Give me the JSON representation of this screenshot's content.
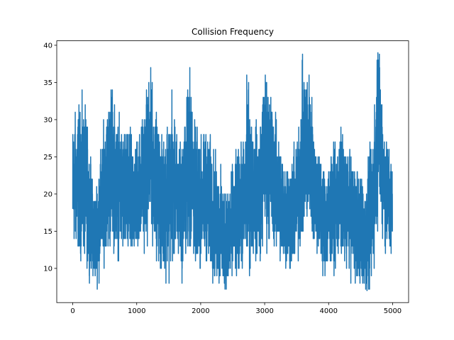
{
  "chart_data": {
    "type": "line",
    "title": "Collision Frequency",
    "xlabel": "",
    "ylabel": "",
    "xlim": [
      -250,
      5250
    ],
    "ylim": [
      5.4,
      40.6
    ],
    "xticks": [
      0,
      1000,
      2000,
      3000,
      4000,
      5000
    ],
    "yticks": [
      10,
      15,
      20,
      25,
      30,
      35,
      40
    ],
    "grid": false,
    "legend": "none",
    "n_points": 5000,
    "series_color": "#1f77b4",
    "series": [
      {
        "anchors_x": [
          0,
          100,
          200,
          300,
          350,
          400,
          500,
          600,
          700,
          800,
          900,
          1000,
          1100,
          1200,
          1300,
          1400,
          1500,
          1600,
          1700,
          1800,
          1850,
          1900,
          2000,
          2100,
          2200,
          2300,
          2400,
          2500,
          2600,
          2700,
          2750,
          2800,
          2900,
          3000,
          3100,
          3200,
          3300,
          3400,
          3500,
          3600,
          3700,
          3800,
          3900,
          4000,
          4100,
          4200,
          4300,
          4400,
          4500,
          4600,
          4700,
          4780,
          4850,
          4900,
          5000
        ],
        "anchors_mean": [
          21,
          22,
          21,
          16,
          14,
          16,
          21,
          24,
          21,
          20,
          19,
          20,
          22,
          25,
          22,
          18,
          21,
          20,
          18,
          23,
          24,
          20,
          19,
          20,
          17,
          15,
          14,
          16,
          18,
          19,
          22,
          21,
          20,
          25,
          24,
          20,
          18,
          17,
          19,
          25,
          26,
          20,
          17,
          17,
          18,
          20,
          18,
          17,
          15,
          14,
          19,
          30,
          24,
          20,
          18
        ],
        "anchors_amp": [
          4,
          4.5,
          4.5,
          3,
          3,
          3.5,
          4,
          5,
          4,
          4,
          4,
          3.5,
          4,
          5,
          4,
          4,
          5,
          4,
          4,
          5,
          5.5,
          4,
          4,
          4,
          4,
          3.5,
          3.5,
          3.5,
          3.5,
          4,
          6,
          4,
          4,
          5.5,
          4.5,
          4,
          3.5,
          3.5,
          3.5,
          5.5,
          4.5,
          3.5,
          3.5,
          3.5,
          3.5,
          4,
          3.5,
          3.5,
          3.5,
          4,
          4.5,
          5.5,
          4,
          3.5,
          3.5
        ],
        "peaks": [
          {
            "x": 1830,
            "y": 37
          },
          {
            "x": 2720,
            "y": 36
          },
          {
            "x": 4770,
            "y": 39
          },
          {
            "x": 4780,
            "y": 38
          },
          {
            "x": 4600,
            "y": 7
          },
          {
            "x": 4590,
            "y": 8
          },
          {
            "x": 1550,
            "y": 34
          },
          {
            "x": 3630,
            "y": 34
          },
          {
            "x": 3650,
            "y": 34
          },
          {
            "x": 1230,
            "y": 34
          },
          {
            "x": 2990,
            "y": 33
          },
          {
            "x": 600,
            "y": 33
          },
          {
            "x": 2420,
            "y": 9
          },
          {
            "x": 2560,
            "y": 9
          },
          {
            "x": 2490,
            "y": 9
          },
          {
            "x": 2650,
            "y": 10
          },
          {
            "x": 3330,
            "y": 10
          },
          {
            "x": 4400,
            "y": 10
          },
          {
            "x": 4250,
            "y": 11
          },
          {
            "x": 310,
            "y": 11
          },
          {
            "x": 1380,
            "y": 11
          },
          {
            "x": 1940,
            "y": 12
          },
          {
            "x": 4880,
            "y": 13
          },
          {
            "x": 4970,
            "y": 13
          },
          {
            "x": 5000,
            "y": 22
          },
          {
            "x": 0,
            "y": 18
          }
        ]
      }
    ]
  }
}
